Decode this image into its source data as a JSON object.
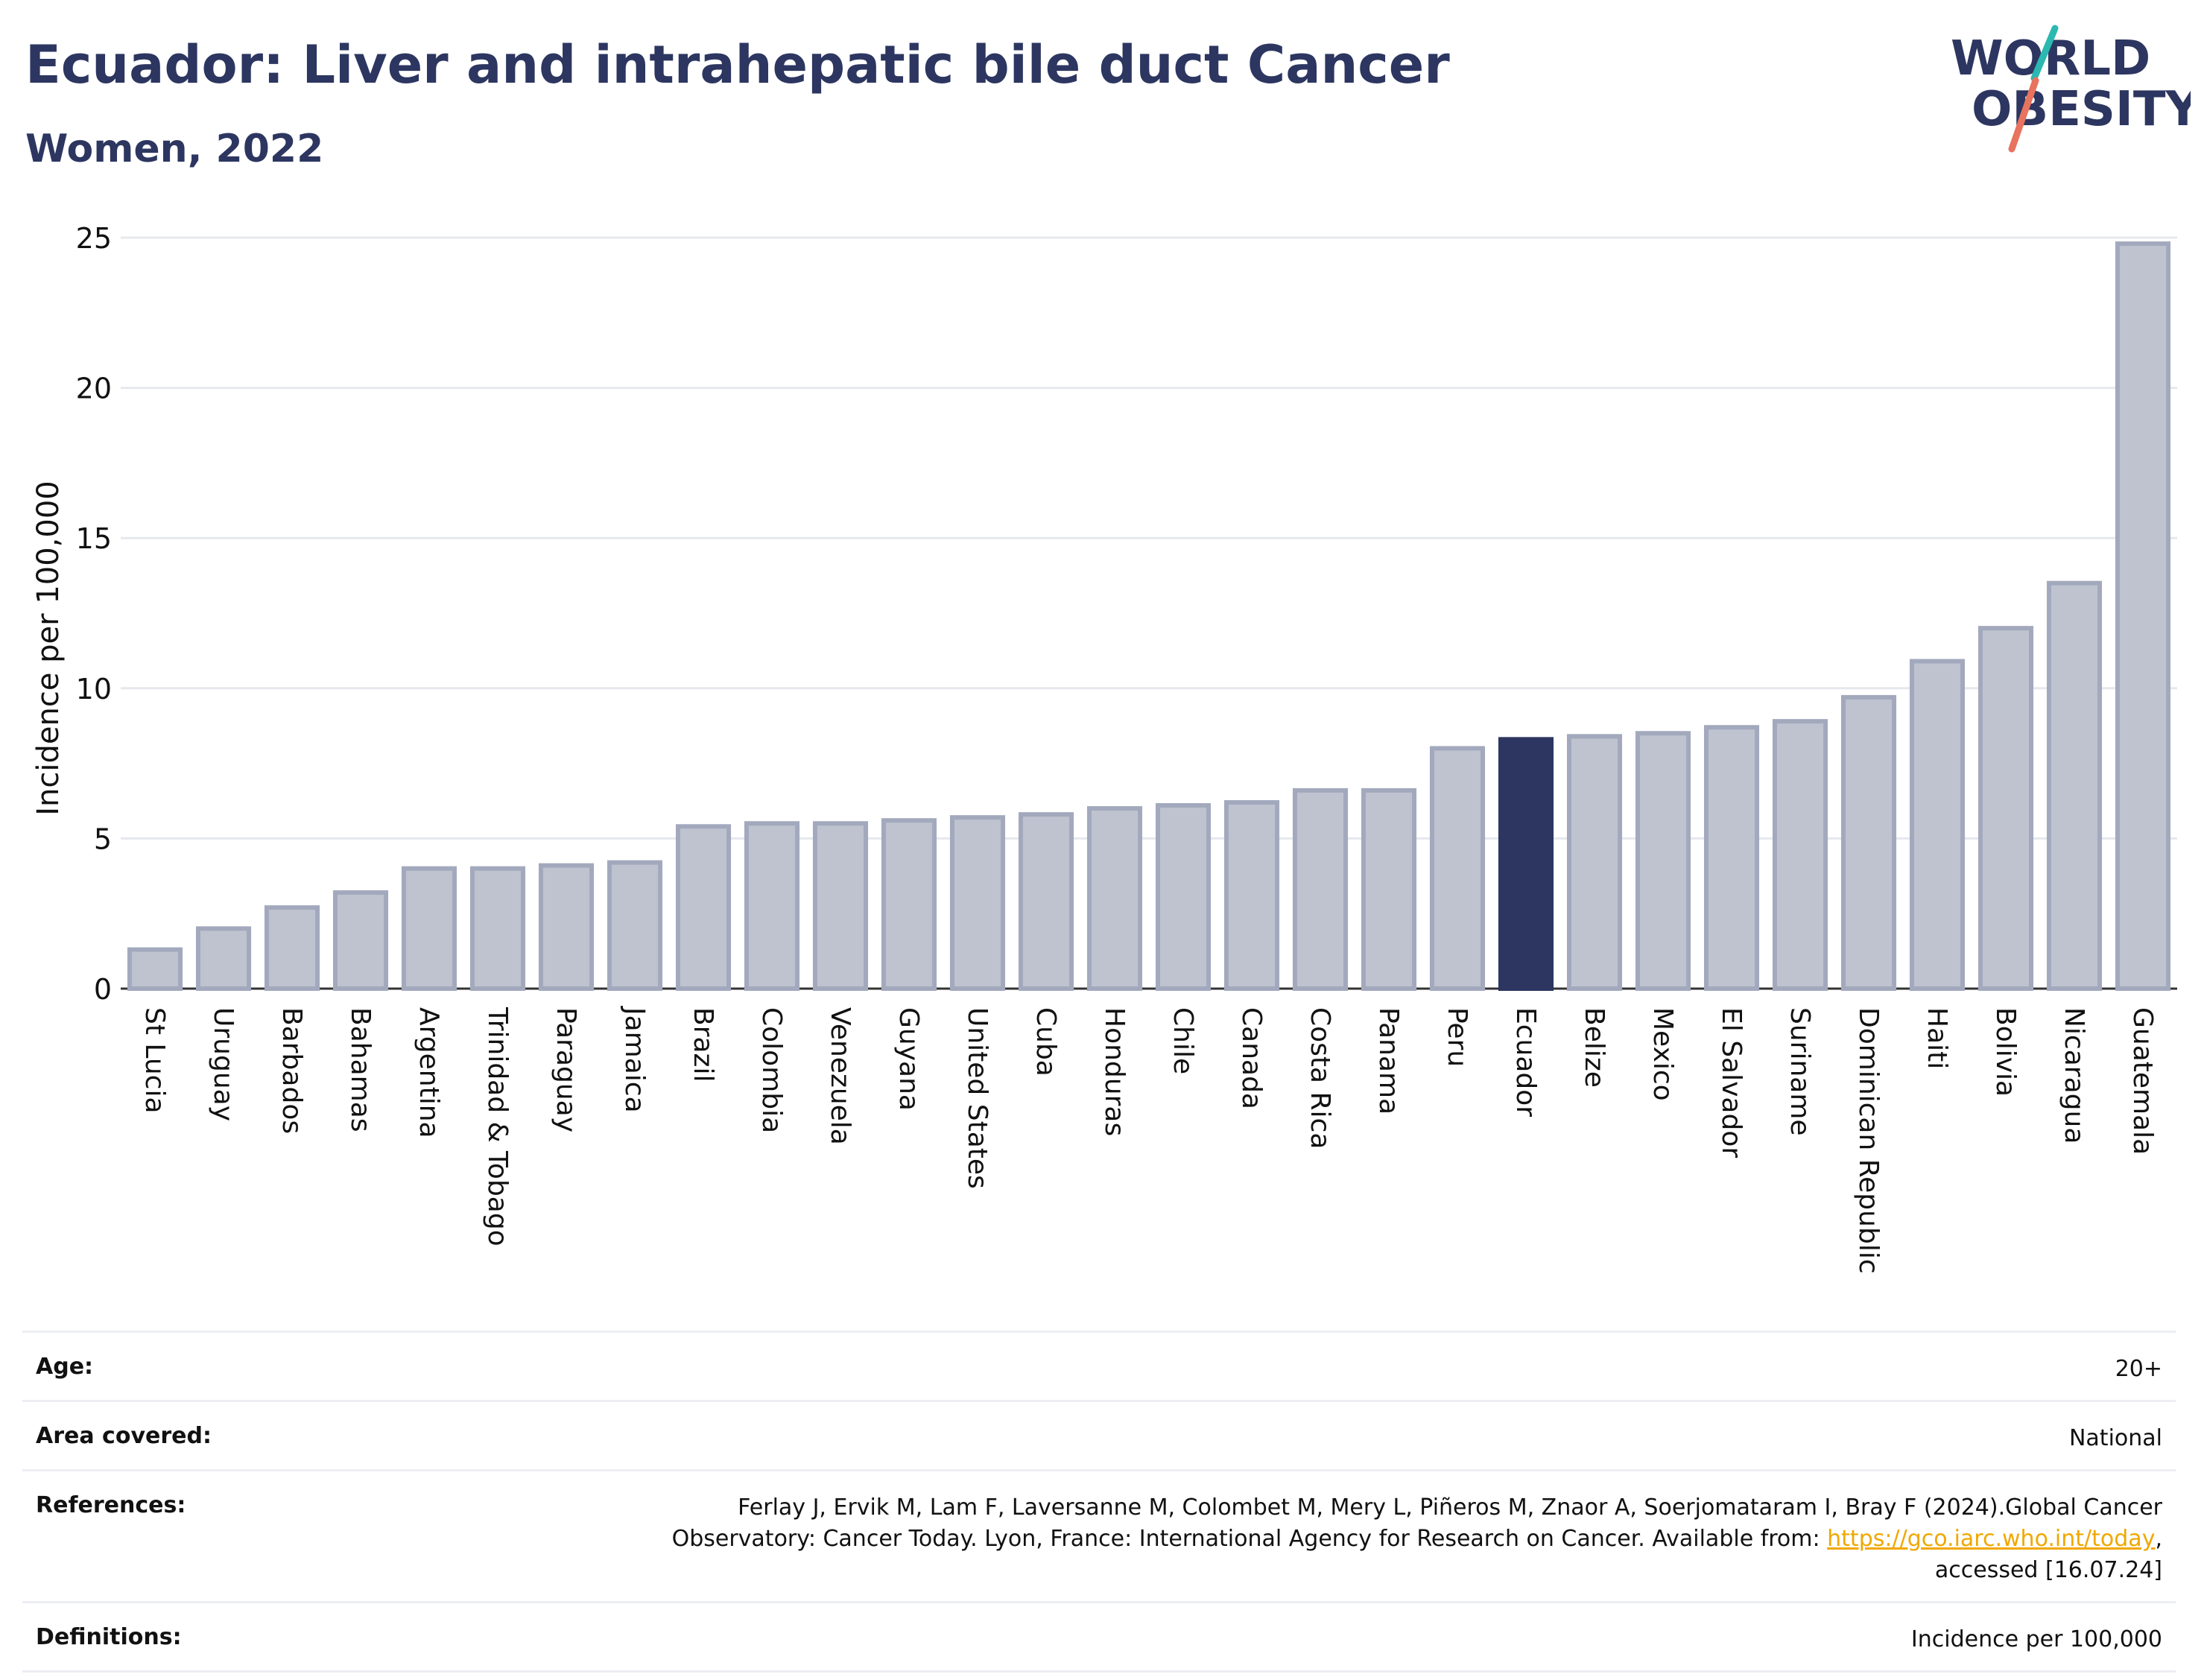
{
  "header": {
    "title": "Ecuador: Liver and intrahepatic bile duct Cancer",
    "subtitle": "Women, 2022"
  },
  "logo": {
    "line1": "WORLD",
    "line2": "OBESITY",
    "accent_teal": "#2bb8b0",
    "accent_coral": "#e8735e"
  },
  "colors": {
    "bar": "#bfc3d0",
    "bar_stroke": "#a3a9bd",
    "highlight": "#2c3660",
    "grid": "#e6e8ee"
  },
  "chart_data": {
    "type": "bar",
    "ylabel": "Incidence per 100,000",
    "ylim": [
      0,
      25
    ],
    "yticks": [
      0,
      5,
      10,
      15,
      20,
      25
    ],
    "highlight": "Ecuador",
    "grid": true,
    "categories": [
      "St Lucia",
      "Uruguay",
      "Barbados",
      "Bahamas",
      "Argentina",
      "Trinidad & Tobago",
      "Paraguay",
      "Jamaica",
      "Brazil",
      "Colombia",
      "Venezuela",
      "Guyana",
      "United States",
      "Cuba",
      "Honduras",
      "Chile",
      "Canada",
      "Costa Rica",
      "Panama",
      "Peru",
      "Ecuador",
      "Belize",
      "Mexico",
      "El Salvador",
      "Suriname",
      "Dominican Republic",
      "Haiti",
      "Bolivia",
      "Nicaragua",
      "Guatemala"
    ],
    "values": [
      1.3,
      2.0,
      2.7,
      3.2,
      4.0,
      4.0,
      4.1,
      4.2,
      5.4,
      5.5,
      5.5,
      5.6,
      5.7,
      5.8,
      6.0,
      6.1,
      6.2,
      6.6,
      6.6,
      8.0,
      8.3,
      8.4,
      8.5,
      8.7,
      8.9,
      9.7,
      10.9,
      12.0,
      13.5,
      24.8
    ]
  },
  "info": [
    {
      "label": "Age:",
      "value": "20+"
    },
    {
      "label": "Area covered:",
      "value": "National"
    },
    {
      "label": "References:",
      "value_pre": "Ferlay J, Ervik M, Lam F, Laversanne M, Colombet M, Mery L, Piñeros M, Znaor A, Soerjomataram I, Bray F (2024).Global Cancer Observatory: Cancer Today. Lyon, France: International Agency for Research on Cancer. Available from: ",
      "link": "https://gco.iarc.who.int/today",
      "value_post": ", accessed [16.07.24]"
    },
    {
      "label": "Definitions:",
      "value": "Incidence per 100,000"
    }
  ]
}
